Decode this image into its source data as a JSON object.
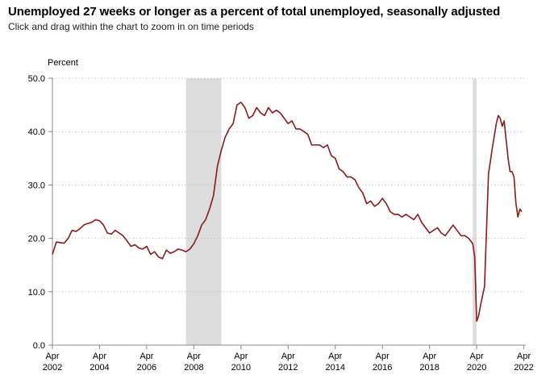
{
  "page": {
    "title": "Unemployed 27 weeks or longer as a percent of total unemployed, seasonally adjusted",
    "subtitle": "Click and drag within the chart to zoom in on time periods"
  },
  "chart_data": {
    "type": "line",
    "title": "Unemployed 27 weeks or longer as a percent of total unemployed, seasonally adjusted",
    "ylabel": "Percent",
    "xlabel": "",
    "xlim": [
      "2002-04",
      "2022-05"
    ],
    "ylim": [
      0,
      50
    ],
    "y_ticks": [
      "0.0",
      "10.0",
      "20.0",
      "30.0",
      "40.0",
      "50.0"
    ],
    "x_ticks": [
      {
        "month": "Apr",
        "year": "2002",
        "date": "2002-04"
      },
      {
        "month": "Apr",
        "year": "2004",
        "date": "2004-04"
      },
      {
        "month": "Apr",
        "year": "2006",
        "date": "2006-04"
      },
      {
        "month": "Apr",
        "year": "2008",
        "date": "2008-04"
      },
      {
        "month": "Apr",
        "year": "2010",
        "date": "2010-04"
      },
      {
        "month": "Apr",
        "year": "2012",
        "date": "2012-04"
      },
      {
        "month": "Apr",
        "year": "2014",
        "date": "2014-04"
      },
      {
        "month": "Apr",
        "year": "2016",
        "date": "2016-04"
      },
      {
        "month": "Apr",
        "year": "2018",
        "date": "2018-04"
      },
      {
        "month": "Apr",
        "year": "2020",
        "date": "2020-04"
      },
      {
        "month": "Apr",
        "year": "2022",
        "date": "2022-04"
      }
    ],
    "grid": {
      "horizontal": true,
      "style": "dotted"
    },
    "recessions": [
      {
        "start": "2007-12",
        "end": "2009-06"
      },
      {
        "start": "2020-02",
        "end": "2020-04"
      }
    ],
    "series": [
      {
        "color": "#8b1a1a",
        "points": [
          [
            "2002-04",
            17.0
          ],
          [
            "2002-06",
            19.3
          ],
          [
            "2002-08",
            19.2
          ],
          [
            "2002-10",
            19.1
          ],
          [
            "2002-12",
            20.0
          ],
          [
            "2003-02",
            21.5
          ],
          [
            "2003-04",
            21.3
          ],
          [
            "2003-06",
            21.8
          ],
          [
            "2003-08",
            22.5
          ],
          [
            "2003-10",
            22.8
          ],
          [
            "2003-12",
            23.0
          ],
          [
            "2004-02",
            23.5
          ],
          [
            "2004-04",
            23.3
          ],
          [
            "2004-06",
            22.5
          ],
          [
            "2004-08",
            21.0
          ],
          [
            "2004-10",
            20.8
          ],
          [
            "2004-12",
            21.5
          ],
          [
            "2005-02",
            21.0
          ],
          [
            "2005-04",
            20.5
          ],
          [
            "2005-06",
            19.5
          ],
          [
            "2005-08",
            18.5
          ],
          [
            "2005-10",
            18.8
          ],
          [
            "2005-12",
            18.2
          ],
          [
            "2006-02",
            18.0
          ],
          [
            "2006-04",
            18.5
          ],
          [
            "2006-06",
            17.0
          ],
          [
            "2006-08",
            17.5
          ],
          [
            "2006-10",
            16.5
          ],
          [
            "2006-12",
            16.2
          ],
          [
            "2007-02",
            17.8
          ],
          [
            "2007-04",
            17.2
          ],
          [
            "2007-06",
            17.5
          ],
          [
            "2007-08",
            18.0
          ],
          [
            "2007-10",
            17.8
          ],
          [
            "2007-12",
            17.5
          ],
          [
            "2008-02",
            18.0
          ],
          [
            "2008-04",
            19.0
          ],
          [
            "2008-06",
            20.5
          ],
          [
            "2008-08",
            22.5
          ],
          [
            "2008-10",
            23.5
          ],
          [
            "2008-12",
            25.5
          ],
          [
            "2009-02",
            28.0
          ],
          [
            "2009-04",
            33.5
          ],
          [
            "2009-06",
            36.5
          ],
          [
            "2009-08",
            39.0
          ],
          [
            "2009-10",
            40.5
          ],
          [
            "2009-12",
            41.5
          ],
          [
            "2010-02",
            45.0
          ],
          [
            "2010-04",
            45.5
          ],
          [
            "2010-06",
            44.5
          ],
          [
            "2010-08",
            42.5
          ],
          [
            "2010-10",
            43.0
          ],
          [
            "2010-12",
            44.5
          ],
          [
            "2011-02",
            43.5
          ],
          [
            "2011-04",
            43.0
          ],
          [
            "2011-06",
            44.5
          ],
          [
            "2011-08",
            43.5
          ],
          [
            "2011-10",
            44.0
          ],
          [
            "2011-12",
            43.5
          ],
          [
            "2012-02",
            42.5
          ],
          [
            "2012-04",
            41.5
          ],
          [
            "2012-06",
            42.0
          ],
          [
            "2012-08",
            40.5
          ],
          [
            "2012-10",
            40.5
          ],
          [
            "2012-12",
            40.0
          ],
          [
            "2013-02",
            39.5
          ],
          [
            "2013-04",
            37.5
          ],
          [
            "2013-06",
            37.5
          ],
          [
            "2013-08",
            37.5
          ],
          [
            "2013-10",
            37.0
          ],
          [
            "2013-12",
            37.5
          ],
          [
            "2014-02",
            35.5
          ],
          [
            "2014-04",
            35.0
          ],
          [
            "2014-06",
            33.0
          ],
          [
            "2014-08",
            32.5
          ],
          [
            "2014-10",
            31.5
          ],
          [
            "2014-12",
            31.5
          ],
          [
            "2015-02",
            31.0
          ],
          [
            "2015-04",
            29.5
          ],
          [
            "2015-06",
            28.5
          ],
          [
            "2015-08",
            26.5
          ],
          [
            "2015-10",
            27.0
          ],
          [
            "2015-12",
            26.0
          ],
          [
            "2016-02",
            26.5
          ],
          [
            "2016-04",
            27.5
          ],
          [
            "2016-06",
            26.5
          ],
          [
            "2016-08",
            25.0
          ],
          [
            "2016-10",
            24.5
          ],
          [
            "2016-12",
            24.5
          ],
          [
            "2017-02",
            24.0
          ],
          [
            "2017-04",
            24.5
          ],
          [
            "2017-06",
            24.0
          ],
          [
            "2017-08",
            23.5
          ],
          [
            "2017-10",
            24.5
          ],
          [
            "2017-12",
            23.0
          ],
          [
            "2018-02",
            22.0
          ],
          [
            "2018-04",
            21.0
          ],
          [
            "2018-06",
            21.5
          ],
          [
            "2018-08",
            22.0
          ],
          [
            "2018-10",
            21.0
          ],
          [
            "2018-12",
            20.5
          ],
          [
            "2019-02",
            21.5
          ],
          [
            "2019-04",
            22.5
          ],
          [
            "2019-06",
            21.5
          ],
          [
            "2019-08",
            20.5
          ],
          [
            "2019-10",
            20.5
          ],
          [
            "2019-12",
            20.0
          ],
          [
            "2020-02",
            19.0
          ],
          [
            "2020-03",
            16.5
          ],
          [
            "2020-04",
            4.5
          ],
          [
            "2020-05",
            5.5
          ],
          [
            "2020-06",
            7.5
          ],
          [
            "2020-08",
            11.0
          ],
          [
            "2020-10",
            32.0
          ],
          [
            "2020-12",
            37.0
          ],
          [
            "2021-02",
            41.5
          ],
          [
            "2021-03",
            43.0
          ],
          [
            "2021-04",
            42.5
          ],
          [
            "2021-05",
            41.0
          ],
          [
            "2021-06",
            42.0
          ],
          [
            "2021-08",
            35.0
          ],
          [
            "2021-09",
            32.5
          ],
          [
            "2021-10",
            32.5
          ],
          [
            "2021-11",
            31.5
          ],
          [
            "2021-12",
            26.5
          ],
          [
            "2022-01",
            24.0
          ],
          [
            "2022-02",
            25.5
          ],
          [
            "2022-03",
            25.0
          ]
        ]
      }
    ]
  }
}
